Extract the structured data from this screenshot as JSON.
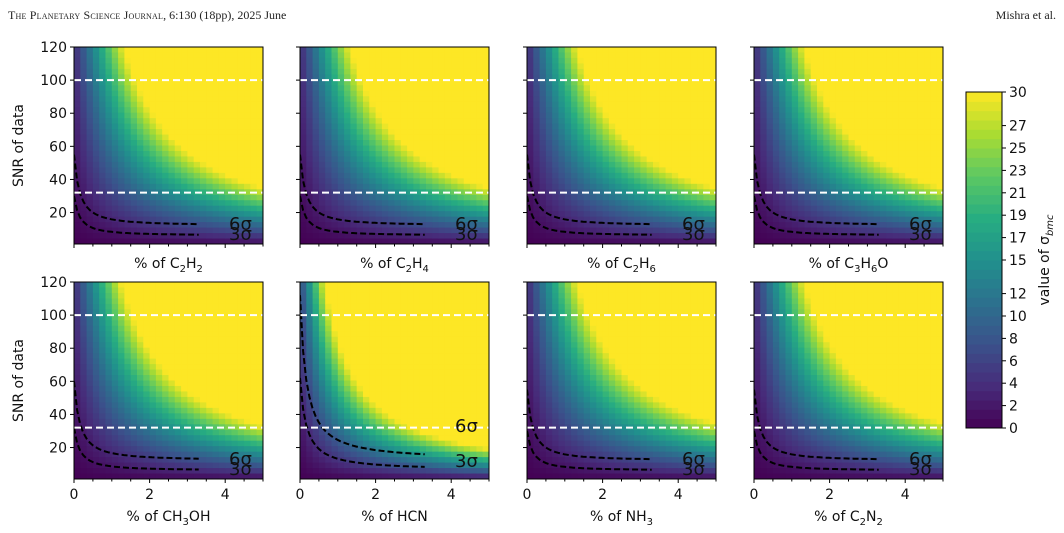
{
  "header": {
    "journal": "The Planetary Science Journal",
    "citation": ", 6:130 (18pp), 2025 June",
    "authors": "Mishra et al."
  },
  "colors": {
    "colormap": [
      "#440154",
      "#472c7a",
      "#3b518b",
      "#2c718e",
      "#21908d",
      "#27ad81",
      "#5cc863",
      "#aadc32",
      "#fde725"
    ],
    "dashed_sigma": "#000000",
    "dashed_snr": "#ffffff"
  },
  "chart_data": {
    "type": "heatmap",
    "ylabel": "SNR of data",
    "ylim": [
      1,
      120
    ],
    "xlim": [
      0,
      5
    ],
    "y_ticks": [
      20,
      40,
      60,
      80,
      100,
      120
    ],
    "x_ticks": [
      0,
      2,
      4
    ],
    "snr_reference_lines": [
      32,
      100
    ],
    "colorbar": {
      "label": "value of σ_bmc",
      "label_main": "value of σ",
      "label_sub": "bmc",
      "min": 0,
      "max": 30,
      "ticks": [
        0,
        2,
        4,
        6,
        8,
        10,
        12,
        15,
        17,
        19,
        21,
        23,
        25,
        27,
        30
      ]
    },
    "sigma_labels": [
      "6σ",
      "3σ"
    ],
    "panels": [
      {
        "xlabel_pre": "% of C",
        "parts": [
          [
            "C",
            ""
          ],
          [
            "2",
            "sub"
          ],
          [
            "H",
            ""
          ],
          [
            "2",
            "sub"
          ]
        ],
        "k": 1.0,
        "sigma6_snr_at_0": 55,
        "sigma3_snr_at_0": 30
      },
      {
        "xlabel_pre": "% of C",
        "parts": [
          [
            "C",
            ""
          ],
          [
            "2",
            "sub"
          ],
          [
            "H",
            ""
          ],
          [
            "4",
            "sub"
          ]
        ],
        "k": 1.0,
        "sigma6_snr_at_0": 55,
        "sigma3_snr_at_0": 30
      },
      {
        "xlabel_pre": "% of C",
        "parts": [
          [
            "C",
            ""
          ],
          [
            "2",
            "sub"
          ],
          [
            "H",
            ""
          ],
          [
            "6",
            "sub"
          ]
        ],
        "k": 1.0,
        "sigma6_snr_at_0": 55,
        "sigma3_snr_at_0": 30
      },
      {
        "xlabel_pre": "% of C",
        "parts": [
          [
            "C",
            ""
          ],
          [
            "3",
            "sub"
          ],
          [
            "H",
            ""
          ],
          [
            "6",
            "sub"
          ],
          [
            "O",
            ""
          ]
        ],
        "k": 1.0,
        "sigma6_snr_at_0": 55,
        "sigma3_snr_at_0": 30
      },
      {
        "xlabel_pre": "% of C",
        "parts": [
          [
            "CH",
            ""
          ],
          [
            "3",
            "sub"
          ],
          [
            "OH",
            ""
          ]
        ],
        "k": 1.05,
        "sigma6_snr_at_0": 60,
        "sigma3_snr_at_0": 32
      },
      {
        "xlabel_pre": "% of HCN",
        "parts": [
          [
            "HCN",
            ""
          ]
        ],
        "k": 1.8,
        "sigma6_snr_at_0": 112,
        "sigma3_snr_at_0": 62
      },
      {
        "xlabel_pre": "% of N",
        "parts": [
          [
            "NH",
            ""
          ],
          [
            "3",
            "sub"
          ]
        ],
        "k": 1.0,
        "sigma6_snr_at_0": 55,
        "sigma3_snr_at_0": 30
      },
      {
        "xlabel_pre": "% of C",
        "parts": [
          [
            "C",
            ""
          ],
          [
            "2",
            "sub"
          ],
          [
            "N",
            ""
          ],
          [
            "2",
            "sub"
          ]
        ],
        "k": 1.0,
        "sigma6_snr_at_0": 55,
        "sigma3_snr_at_0": 30
      }
    ]
  }
}
